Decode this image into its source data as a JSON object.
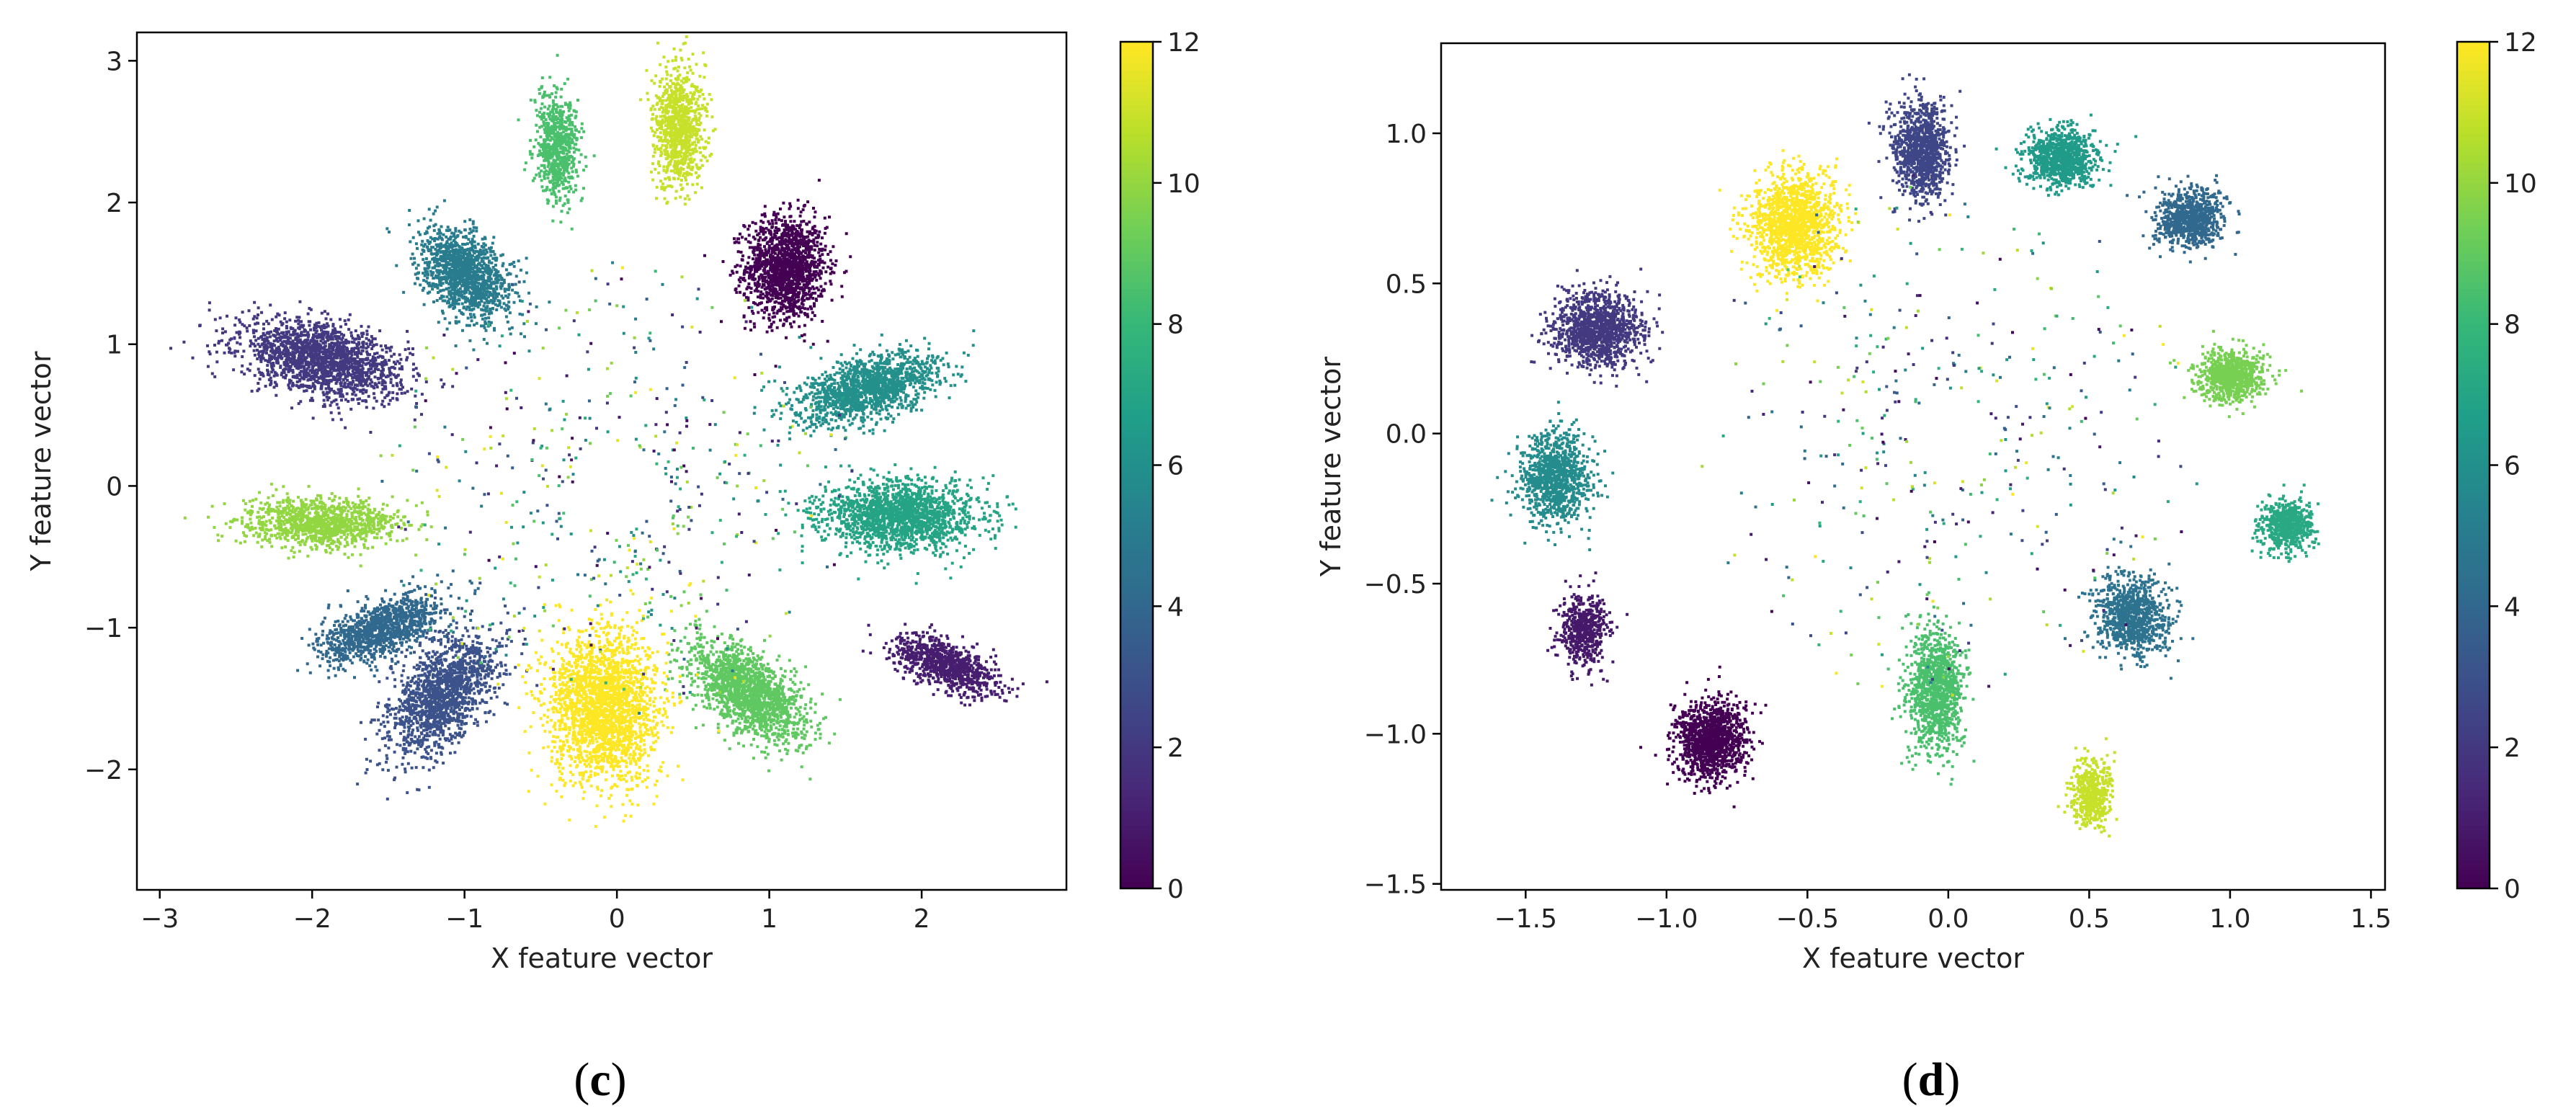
{
  "figure_title": "",
  "colorbar": {
    "min": 0,
    "max": 12,
    "ticks": [
      0,
      2,
      4,
      6,
      8,
      10,
      12
    ],
    "colormap": "viridis",
    "stops": [
      "#440154",
      "#482878",
      "#3e4a89",
      "#31688e",
      "#26828e",
      "#1f9e89",
      "#35b779",
      "#6ece58",
      "#b5de2b",
      "#fde725"
    ]
  },
  "chart_data": [
    {
      "type": "scatter",
      "panel_label_open": "(",
      "panel_label_letter": "c",
      "panel_label_close": ")",
      "title": "",
      "xlabel": "X feature vector",
      "ylabel": "Y feature vector",
      "xlim": [
        -3.15,
        2.95
      ],
      "ylim": [
        -2.85,
        3.2
      ],
      "xticks": [
        -3,
        -2,
        -1,
        0,
        1,
        2
      ],
      "yticks": [
        -2,
        -1,
        0,
        1,
        2,
        3
      ],
      "colorbar_label": "",
      "clusters": [
        {
          "label": 0,
          "center": [
            1.1,
            1.55
          ],
          "spread": [
            0.22,
            0.3
          ],
          "angle_deg": 0,
          "count": 1500
        },
        {
          "label": 1,
          "center": [
            2.15,
            -1.25
          ],
          "spread": [
            0.3,
            0.13
          ],
          "angle_deg": -25,
          "count": 900
        },
        {
          "label": 2,
          "center": [
            -1.95,
            0.9
          ],
          "spread": [
            0.45,
            0.2
          ],
          "angle_deg": -15,
          "count": 1800
        },
        {
          "label": 3,
          "center": [
            -1.15,
            -1.45
          ],
          "spread": [
            0.22,
            0.4
          ],
          "angle_deg": -35,
          "count": 1500
        },
        {
          "label": 4,
          "center": [
            -1.55,
            -1.0
          ],
          "spread": [
            0.35,
            0.15
          ],
          "angle_deg": 25,
          "count": 1100
        },
        {
          "label": 5,
          "center": [
            -1.0,
            1.5
          ],
          "spread": [
            0.3,
            0.2
          ],
          "angle_deg": -50,
          "count": 1300
        },
        {
          "label": 6,
          "center": [
            1.65,
            0.7
          ],
          "spread": [
            0.4,
            0.17
          ],
          "angle_deg": 18,
          "count": 1400
        },
        {
          "label": 7,
          "center": [
            1.85,
            -0.2
          ],
          "spread": [
            0.42,
            0.2
          ],
          "angle_deg": 0,
          "count": 1700
        },
        {
          "label": 9,
          "center": [
            0.85,
            -1.45
          ],
          "spread": [
            0.38,
            0.2
          ],
          "angle_deg": -42,
          "count": 1600
        },
        {
          "label": 8.5,
          "center": [
            -0.4,
            2.4
          ],
          "spread": [
            0.12,
            0.32
          ],
          "angle_deg": 0,
          "count": 700
        },
        {
          "label": 10,
          "center": [
            -1.95,
            -0.25
          ],
          "spread": [
            0.42,
            0.14
          ],
          "angle_deg": 0,
          "count": 1100
        },
        {
          "label": 11,
          "center": [
            0.4,
            2.55
          ],
          "spread": [
            0.14,
            0.35
          ],
          "angle_deg": 0,
          "count": 900
        },
        {
          "label": 12,
          "center": [
            -0.1,
            -1.55
          ],
          "spread": [
            0.3,
            0.45
          ],
          "angle_deg": 0,
          "count": 2200
        }
      ],
      "scatter_noise": {
        "count": 500,
        "radius_range": [
          0.3,
          1.6
        ]
      }
    },
    {
      "type": "scatter",
      "panel_label_open": "(",
      "panel_label_letter": "d",
      "panel_label_close": ")",
      "title": "",
      "xlabel": "X feature vector",
      "ylabel": "Y feature vector",
      "xlim": [
        -1.8,
        1.55
      ],
      "ylim": [
        -1.52,
        1.3
      ],
      "xticks": [
        -1.5,
        -1.0,
        -0.5,
        0.0,
        0.5,
        1.0,
        1.5
      ],
      "yticks": [
        -1.5,
        -1.0,
        -0.5,
        0.0,
        0.5,
        1.0
      ],
      "xtick_labels": [
        "−1.5",
        "−1.0",
        "−0.5",
        "0.0",
        "0.5",
        "1.0",
        "1.5"
      ],
      "ytick_labels": [
        "−1.5",
        "−1.0",
        "−0.5",
        "0.0",
        "0.5",
        "1.0"
      ],
      "colorbar_label": "",
      "clusters": [
        {
          "label": 0,
          "center": [
            -0.85,
            -1.02
          ],
          "spread": [
            0.1,
            0.11
          ],
          "angle_deg": 0,
          "count": 1200
        },
        {
          "label": 0.8,
          "center": [
            -1.3,
            -0.65
          ],
          "spread": [
            0.07,
            0.1
          ],
          "angle_deg": 0,
          "count": 500
        },
        {
          "label": 2,
          "center": [
            -1.25,
            0.35
          ],
          "spread": [
            0.13,
            0.1
          ],
          "angle_deg": 0,
          "count": 1200
        },
        {
          "label": 2.5,
          "center": [
            -0.1,
            0.95
          ],
          "spread": [
            0.08,
            0.13
          ],
          "angle_deg": 0,
          "count": 1000
        },
        {
          "label": 4,
          "center": [
            0.85,
            0.72
          ],
          "spread": [
            0.1,
            0.08
          ],
          "angle_deg": 0,
          "count": 800
        },
        {
          "label": 4.5,
          "center": [
            0.65,
            -0.6
          ],
          "spread": [
            0.1,
            0.12
          ],
          "angle_deg": 30,
          "count": 900
        },
        {
          "label": 5.8,
          "center": [
            -1.4,
            -0.15
          ],
          "spread": [
            0.1,
            0.12
          ],
          "angle_deg": 0,
          "count": 1000
        },
        {
          "label": 6.5,
          "center": [
            0.4,
            0.92
          ],
          "spread": [
            0.1,
            0.08
          ],
          "angle_deg": 0,
          "count": 900
        },
        {
          "label": 7.2,
          "center": [
            1.2,
            -0.3
          ],
          "spread": [
            0.08,
            0.07
          ],
          "angle_deg": 0,
          "count": 600
        },
        {
          "label": 8.5,
          "center": [
            -0.05,
            -0.85
          ],
          "spread": [
            0.08,
            0.17
          ],
          "angle_deg": 0,
          "count": 1100
        },
        {
          "label": 9.5,
          "center": [
            1.0,
            0.2
          ],
          "spread": [
            0.1,
            0.07
          ],
          "angle_deg": 0,
          "count": 800
        },
        {
          "label": 11,
          "center": [
            0.5,
            -1.2
          ],
          "spread": [
            0.06,
            0.09
          ],
          "angle_deg": 0,
          "count": 500
        },
        {
          "label": 12,
          "center": [
            -0.55,
            0.7
          ],
          "spread": [
            0.13,
            0.14
          ],
          "angle_deg": 0,
          "count": 1400
        }
      ],
      "scatter_noise": {
        "count": 400,
        "radius_range": [
          0.15,
          0.9
        ]
      }
    }
  ]
}
